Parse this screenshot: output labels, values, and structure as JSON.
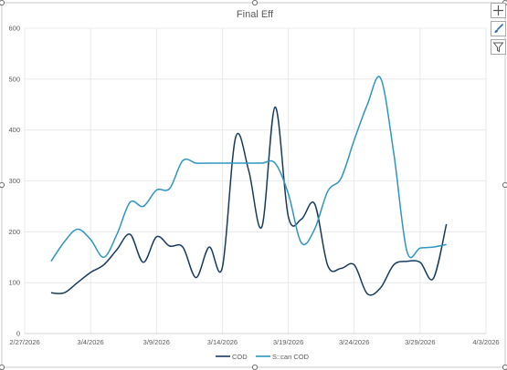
{
  "chart_data": {
    "type": "line",
    "title": "Final Eff",
    "xlabel": "",
    "ylabel": "",
    "ylim": [
      0,
      600
    ],
    "y_ticks": [
      0,
      100,
      200,
      300,
      400,
      500,
      600
    ],
    "x_ticks": [
      "2/27/2026",
      "3/4/2026",
      "3/9/2026",
      "3/14/2026",
      "3/19/2026",
      "3/24/2026",
      "3/29/2026",
      "4/3/2026"
    ],
    "grid": true,
    "legend_position": "bottom",
    "series": [
      {
        "name": "COD",
        "color": "#173a5e",
        "points": [
          [
            "3/1/2026",
            80
          ],
          [
            "3/2/2026",
            80
          ],
          [
            "3/3/2026",
            100
          ],
          [
            "3/4/2026",
            120
          ],
          [
            "3/5/2026",
            135
          ],
          [
            "3/6/2026",
            165
          ],
          [
            "3/7/2026",
            195
          ],
          [
            "3/8/2026",
            140
          ],
          [
            "3/9/2026",
            190
          ],
          [
            "3/10/2026",
            172
          ],
          [
            "3/11/2026",
            170
          ],
          [
            "3/12/2026",
            110
          ],
          [
            "3/13/2026",
            170
          ],
          [
            "3/14/2026",
            130
          ],
          [
            "3/15/2026",
            385
          ],
          [
            "3/16/2026",
            320
          ],
          [
            "3/17/2026",
            210
          ],
          [
            "3/18/2026",
            445
          ],
          [
            "3/19/2026",
            230
          ],
          [
            "3/20/2026",
            225
          ],
          [
            "3/21/2026",
            255
          ],
          [
            "3/22/2026",
            133
          ],
          [
            "3/23/2026",
            128
          ],
          [
            "3/24/2026",
            135
          ],
          [
            "3/25/2026",
            78
          ],
          [
            "3/26/2026",
            90
          ],
          [
            "3/27/2026",
            135
          ],
          [
            "3/28/2026",
            142
          ],
          [
            "3/29/2026",
            140
          ],
          [
            "3/30/2026",
            108
          ],
          [
            "3/31/2026",
            215
          ]
        ]
      },
      {
        "name": "S::can COD",
        "color": "#2e95c4",
        "points": [
          [
            "3/1/2026",
            142
          ],
          [
            "3/2/2026",
            180
          ],
          [
            "3/3/2026",
            205
          ],
          [
            "3/4/2026",
            185
          ],
          [
            "3/5/2026",
            150
          ],
          [
            "3/6/2026",
            195
          ],
          [
            "3/7/2026",
            258
          ],
          [
            "3/8/2026",
            250
          ],
          [
            "3/9/2026",
            282
          ],
          [
            "3/10/2026",
            285
          ],
          [
            "3/11/2026",
            340
          ],
          [
            "3/12/2026",
            335
          ],
          [
            "3/13/2026",
            335
          ],
          [
            "3/14/2026",
            335
          ],
          [
            "3/15/2026",
            335
          ],
          [
            "3/16/2026",
            335
          ],
          [
            "3/17/2026",
            335
          ],
          [
            "3/18/2026",
            335
          ],
          [
            "3/19/2026",
            275
          ],
          [
            "3/20/2026",
            178
          ],
          [
            "3/21/2026",
            205
          ],
          [
            "3/22/2026",
            280
          ],
          [
            "3/23/2026",
            305
          ],
          [
            "3/24/2026",
            380
          ],
          [
            "3/25/2026",
            450
          ],
          [
            "3/26/2026",
            502
          ],
          [
            "3/27/2026",
            355
          ],
          [
            "3/28/2026",
            162
          ],
          [
            "3/29/2026",
            168
          ],
          [
            "3/30/2026",
            170
          ],
          [
            "3/31/2026",
            175
          ]
        ]
      }
    ]
  },
  "toolbar": {
    "buttons": [
      {
        "name": "chart-elements-button",
        "icon": "plus-icon"
      },
      {
        "name": "chart-styles-button",
        "icon": "brush-icon"
      },
      {
        "name": "chart-filters-button",
        "icon": "filter-icon"
      }
    ]
  }
}
